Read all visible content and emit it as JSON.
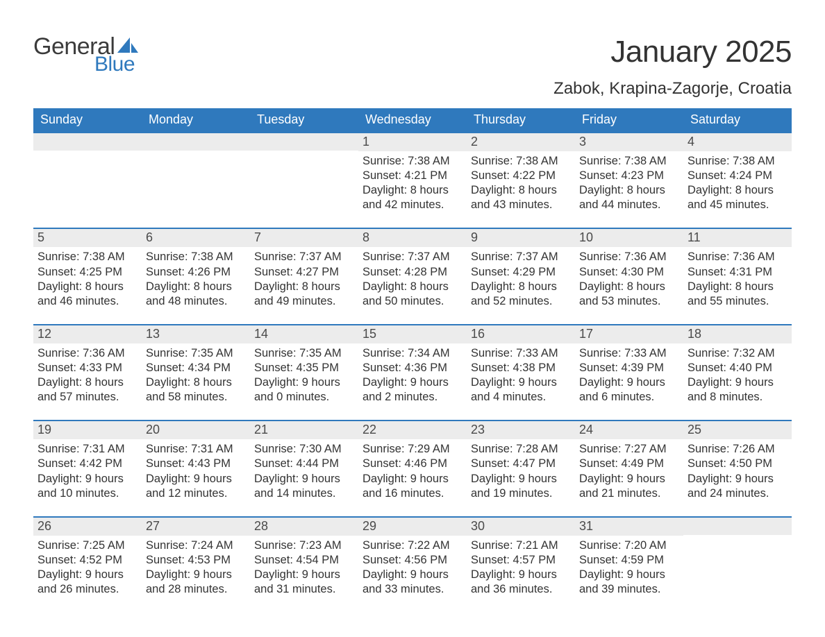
{
  "colors": {
    "brand_blue": "#2f79bd",
    "header_text": "#ffffff",
    "daynum_bg": "#ececec",
    "body_text": "#333333",
    "page_bg": "#ffffff"
  },
  "logo": {
    "text_general": "General",
    "text_blue": "Blue"
  },
  "title": "January 2025",
  "location": "Zabok, Krapina-Zagorje, Croatia",
  "weekdays": [
    "Sunday",
    "Monday",
    "Tuesday",
    "Wednesday",
    "Thursday",
    "Friday",
    "Saturday"
  ],
  "labels": {
    "sunrise": "Sunrise: ",
    "sunset": "Sunset: ",
    "daylight": "Daylight: "
  },
  "weeks": [
    [
      {
        "day": "",
        "sunrise": "",
        "sunset": "",
        "daylight": ""
      },
      {
        "day": "",
        "sunrise": "",
        "sunset": "",
        "daylight": ""
      },
      {
        "day": "",
        "sunrise": "",
        "sunset": "",
        "daylight": ""
      },
      {
        "day": "1",
        "sunrise": "7:38 AM",
        "sunset": "4:21 PM",
        "daylight": "8 hours and 42 minutes."
      },
      {
        "day": "2",
        "sunrise": "7:38 AM",
        "sunset": "4:22 PM",
        "daylight": "8 hours and 43 minutes."
      },
      {
        "day": "3",
        "sunrise": "7:38 AM",
        "sunset": "4:23 PM",
        "daylight": "8 hours and 44 minutes."
      },
      {
        "day": "4",
        "sunrise": "7:38 AM",
        "sunset": "4:24 PM",
        "daylight": "8 hours and 45 minutes."
      }
    ],
    [
      {
        "day": "5",
        "sunrise": "7:38 AM",
        "sunset": "4:25 PM",
        "daylight": "8 hours and 46 minutes."
      },
      {
        "day": "6",
        "sunrise": "7:38 AM",
        "sunset": "4:26 PM",
        "daylight": "8 hours and 48 minutes."
      },
      {
        "day": "7",
        "sunrise": "7:37 AM",
        "sunset": "4:27 PM",
        "daylight": "8 hours and 49 minutes."
      },
      {
        "day": "8",
        "sunrise": "7:37 AM",
        "sunset": "4:28 PM",
        "daylight": "8 hours and 50 minutes."
      },
      {
        "day": "9",
        "sunrise": "7:37 AM",
        "sunset": "4:29 PM",
        "daylight": "8 hours and 52 minutes."
      },
      {
        "day": "10",
        "sunrise": "7:36 AM",
        "sunset": "4:30 PM",
        "daylight": "8 hours and 53 minutes."
      },
      {
        "day": "11",
        "sunrise": "7:36 AM",
        "sunset": "4:31 PM",
        "daylight": "8 hours and 55 minutes."
      }
    ],
    [
      {
        "day": "12",
        "sunrise": "7:36 AM",
        "sunset": "4:33 PM",
        "daylight": "8 hours and 57 minutes."
      },
      {
        "day": "13",
        "sunrise": "7:35 AM",
        "sunset": "4:34 PM",
        "daylight": "8 hours and 58 minutes."
      },
      {
        "day": "14",
        "sunrise": "7:35 AM",
        "sunset": "4:35 PM",
        "daylight": "9 hours and 0 minutes."
      },
      {
        "day": "15",
        "sunrise": "7:34 AM",
        "sunset": "4:36 PM",
        "daylight": "9 hours and 2 minutes."
      },
      {
        "day": "16",
        "sunrise": "7:33 AM",
        "sunset": "4:38 PM",
        "daylight": "9 hours and 4 minutes."
      },
      {
        "day": "17",
        "sunrise": "7:33 AM",
        "sunset": "4:39 PM",
        "daylight": "9 hours and 6 minutes."
      },
      {
        "day": "18",
        "sunrise": "7:32 AM",
        "sunset": "4:40 PM",
        "daylight": "9 hours and 8 minutes."
      }
    ],
    [
      {
        "day": "19",
        "sunrise": "7:31 AM",
        "sunset": "4:42 PM",
        "daylight": "9 hours and 10 minutes."
      },
      {
        "day": "20",
        "sunrise": "7:31 AM",
        "sunset": "4:43 PM",
        "daylight": "9 hours and 12 minutes."
      },
      {
        "day": "21",
        "sunrise": "7:30 AM",
        "sunset": "4:44 PM",
        "daylight": "9 hours and 14 minutes."
      },
      {
        "day": "22",
        "sunrise": "7:29 AM",
        "sunset": "4:46 PM",
        "daylight": "9 hours and 16 minutes."
      },
      {
        "day": "23",
        "sunrise": "7:28 AM",
        "sunset": "4:47 PM",
        "daylight": "9 hours and 19 minutes."
      },
      {
        "day": "24",
        "sunrise": "7:27 AM",
        "sunset": "4:49 PM",
        "daylight": "9 hours and 21 minutes."
      },
      {
        "day": "25",
        "sunrise": "7:26 AM",
        "sunset": "4:50 PM",
        "daylight": "9 hours and 24 minutes."
      }
    ],
    [
      {
        "day": "26",
        "sunrise": "7:25 AM",
        "sunset": "4:52 PM",
        "daylight": "9 hours and 26 minutes."
      },
      {
        "day": "27",
        "sunrise": "7:24 AM",
        "sunset": "4:53 PM",
        "daylight": "9 hours and 28 minutes."
      },
      {
        "day": "28",
        "sunrise": "7:23 AM",
        "sunset": "4:54 PM",
        "daylight": "9 hours and 31 minutes."
      },
      {
        "day": "29",
        "sunrise": "7:22 AM",
        "sunset": "4:56 PM",
        "daylight": "9 hours and 33 minutes."
      },
      {
        "day": "30",
        "sunrise": "7:21 AM",
        "sunset": "4:57 PM",
        "daylight": "9 hours and 36 minutes."
      },
      {
        "day": "31",
        "sunrise": "7:20 AM",
        "sunset": "4:59 PM",
        "daylight": "9 hours and 39 minutes."
      },
      {
        "day": "",
        "sunrise": "",
        "sunset": "",
        "daylight": ""
      }
    ]
  ]
}
